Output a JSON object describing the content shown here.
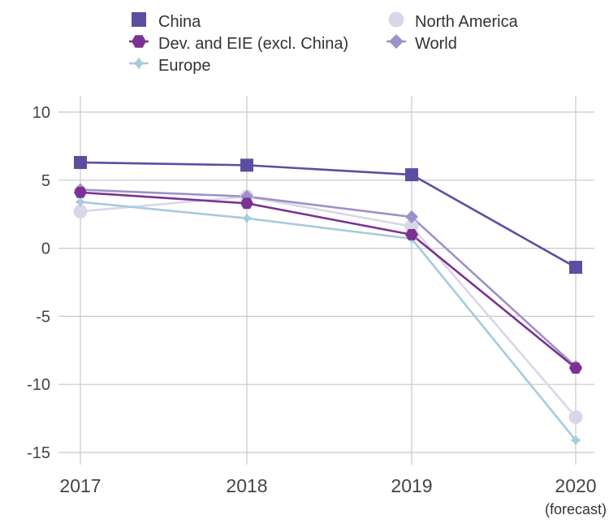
{
  "chart_data": {
    "type": "line",
    "categories": [
      "2017",
      "2018",
      "2019",
      "2020"
    ],
    "x_sublabels": [
      "",
      "",
      "",
      "(forecast)"
    ],
    "y_ticks": [
      10,
      5,
      0,
      -5,
      -10,
      -15
    ],
    "ylim": [
      -15,
      10
    ],
    "grid": true,
    "legend_position": "top",
    "series": [
      {
        "name": "China",
        "color": "#5b4ea1",
        "marker": "square",
        "values": [
          6.3,
          6.1,
          5.4,
          -1.4
        ]
      },
      {
        "name": "Dev. and EIE (excl. China)",
        "color": "#7b3294",
        "marker": "hexagon",
        "values": [
          4.1,
          3.3,
          1.0,
          -8.8
        ]
      },
      {
        "name": "Europe",
        "color": "#a6cbdc",
        "marker": "star",
        "values": [
          3.4,
          2.2,
          0.7,
          -14.1
        ]
      },
      {
        "name": "North America",
        "color": "#d9d6ea",
        "marker": "circle",
        "values": [
          2.7,
          3.8,
          1.6,
          -12.4
        ]
      },
      {
        "name": "World",
        "color": "#9e90c8",
        "marker": "diamond",
        "values": [
          4.3,
          3.8,
          2.3,
          -8.7
        ]
      }
    ]
  }
}
